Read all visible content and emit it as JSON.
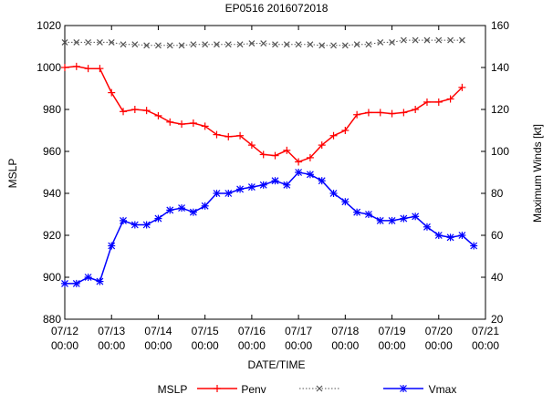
{
  "chart_data": {
    "type": "line",
    "title": "EP0516 2016072018",
    "xlabel": "DATE/TIME",
    "ylabel": "MSLP",
    "y2label": "Maximum Winds [kt]",
    "xlim": [
      0,
      9
    ],
    "ylim": [
      880,
      1020
    ],
    "y2lim": [
      20,
      160
    ],
    "x_ticks": [
      {
        "value": 0,
        "line1": "07/12",
        "line2": "00:00"
      },
      {
        "value": 1,
        "line1": "07/13",
        "line2": "00:00"
      },
      {
        "value": 2,
        "line1": "07/14",
        "line2": "00:00"
      },
      {
        "value": 3,
        "line1": "07/15",
        "line2": "00:00"
      },
      {
        "value": 4,
        "line1": "07/16",
        "line2": "00:00"
      },
      {
        "value": 5,
        "line1": "07/17",
        "line2": "00:00"
      },
      {
        "value": 6,
        "line1": "07/18",
        "line2": "00:00"
      },
      {
        "value": 7,
        "line1": "07/19",
        "line2": "00:00"
      },
      {
        "value": 8,
        "line1": "07/20",
        "line2": "00:00"
      },
      {
        "value": 9,
        "line1": "07/21",
        "line2": "00:00"
      }
    ],
    "y_ticks": [
      880,
      900,
      920,
      940,
      960,
      980,
      1000,
      1020
    ],
    "y2_ticks": [
      20,
      40,
      60,
      80,
      100,
      120,
      140,
      160
    ],
    "legend_title": "MSLP",
    "legend_position": "bottom",
    "x": [
      0,
      0.25,
      0.5,
      0.75,
      1,
      1.25,
      1.5,
      1.75,
      2,
      2.25,
      2.5,
      2.75,
      3,
      3.25,
      3.5,
      3.75,
      4,
      4.25,
      4.5,
      4.75,
      5,
      5.25,
      5.5,
      5.75,
      6,
      6.25,
      6.5,
      6.75,
      7,
      7.25,
      7.5,
      7.75,
      8,
      8.25,
      8.5,
      8.75
    ],
    "series": [
      {
        "name": "Penv",
        "axis": "y",
        "color": "#ff0000",
        "marker": "plus",
        "values": [
          1000,
          1000.5,
          999.5,
          999.5,
          988,
          979,
          980,
          979.5,
          977,
          974,
          973,
          973.5,
          972,
          968,
          967,
          967.5,
          963,
          958.5,
          958,
          960.5,
          955,
          957,
          963,
          967.5,
          970,
          977.5,
          978.5,
          978.5,
          978,
          978.5,
          980,
          983.5,
          983.5,
          985,
          990.5,
          null
        ]
      },
      {
        "name": "",
        "axis": "y",
        "color": "#555555",
        "marker": "cross",
        "dotted": true,
        "values": [
          1012,
          1012,
          1012,
          1012,
          1012,
          1011,
          1011,
          1010.5,
          1010.5,
          1010.5,
          1010.5,
          1011,
          1011,
          1011,
          1011,
          1011,
          1011.5,
          1011.5,
          1011,
          1011,
          1011,
          1011,
          1010.5,
          1010.5,
          1010.5,
          1011,
          1011,
          1012,
          1012,
          1013,
          1013,
          1013,
          1013,
          1013,
          1013,
          null
        ]
      },
      {
        "name": "Vmax",
        "axis": "y2",
        "color": "#0000ff",
        "marker": "star",
        "values": [
          37,
          37,
          40,
          38,
          55,
          67,
          65,
          65,
          68,
          72,
          73,
          71,
          74,
          80,
          80,
          82,
          83,
          84,
          86,
          84,
          90,
          89,
          86,
          80,
          76,
          71,
          70,
          67,
          67,
          68,
          69,
          64,
          60,
          59,
          60,
          55
        ]
      }
    ]
  }
}
